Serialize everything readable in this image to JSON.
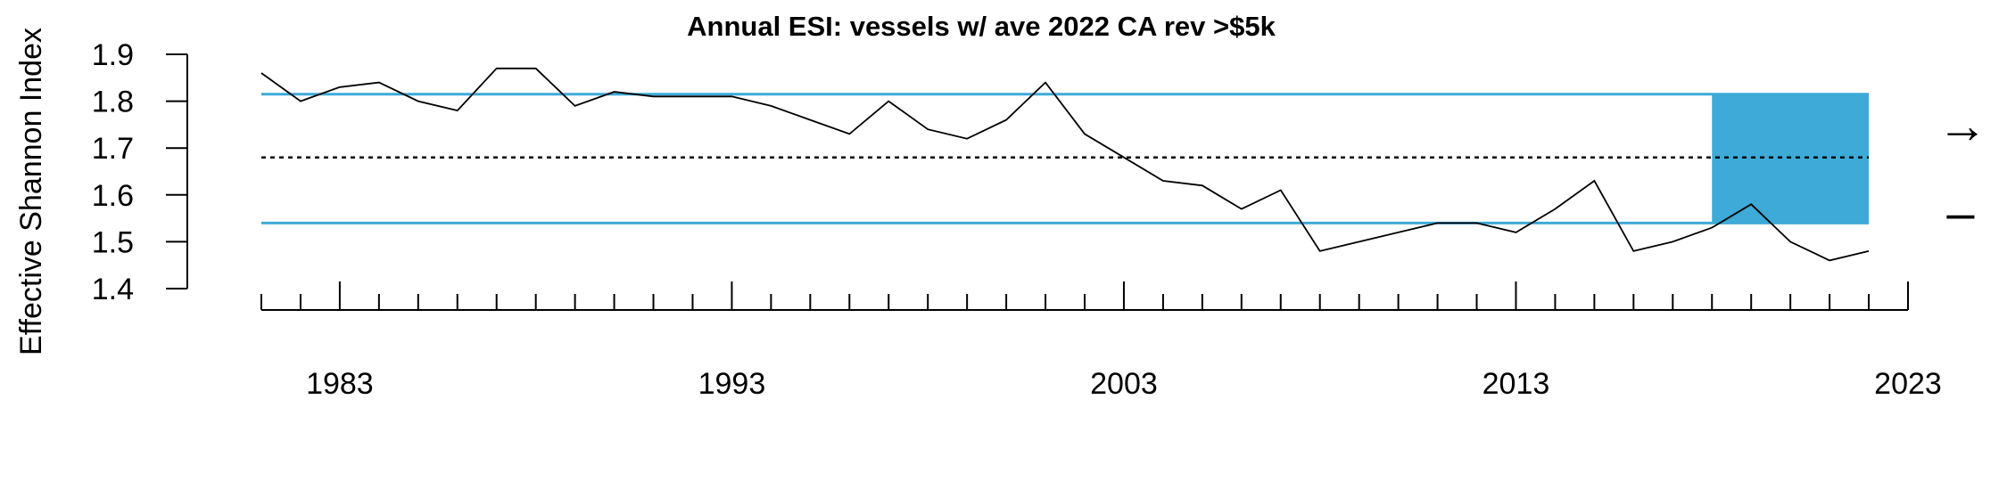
{
  "chart_data": {
    "type": "line",
    "title": "Annual ESI: vessels w/ ave 2022 CA rev >$5k",
    "xlabel": "",
    "ylabel": "Effective Shannon Index",
    "x": [
      1981,
      1982,
      1983,
      1984,
      1985,
      1986,
      1987,
      1988,
      1989,
      1990,
      1991,
      1992,
      1993,
      1994,
      1995,
      1996,
      1997,
      1998,
      1999,
      2000,
      2001,
      2002,
      2003,
      2004,
      2005,
      2006,
      2007,
      2008,
      2009,
      2010,
      2011,
      2012,
      2013,
      2014,
      2015,
      2016,
      2017,
      2018,
      2019,
      2020,
      2021,
      2022
    ],
    "series": [
      {
        "values": [
          1.86,
          1.8,
          1.83,
          1.84,
          1.8,
          1.78,
          1.87,
          1.87,
          1.79,
          1.82,
          1.81,
          1.81,
          1.81,
          1.79,
          1.76,
          1.73,
          1.8,
          1.74,
          1.72,
          1.76,
          1.84,
          1.73,
          1.68,
          1.63,
          1.62,
          1.57,
          1.61,
          1.48,
          1.5,
          1.52,
          1.54,
          1.54,
          1.52,
          1.57,
          1.63,
          1.48,
          1.5,
          1.53,
          1.58,
          1.5,
          1.46,
          1.48
        ]
      }
    ],
    "mean": 1.68,
    "upper_sd": 1.815,
    "lower_sd": 1.54,
    "shaded_period": [
      2018,
      2022
    ],
    "xlim": [
      1981,
      2023
    ],
    "ylim": [
      1.4,
      1.9
    ],
    "yticks": [
      "1.4",
      "1.5",
      "1.6",
      "1.7",
      "1.8",
      "1.9"
    ],
    "xticks_labeled": [
      "1983",
      "1993",
      "2003",
      "2013",
      "2023"
    ],
    "trend_indicator": "→",
    "mean_indicator": "–",
    "colors": {
      "band": "#3daad8",
      "line": "#000000"
    },
    "grid": false,
    "legend": "none"
  }
}
